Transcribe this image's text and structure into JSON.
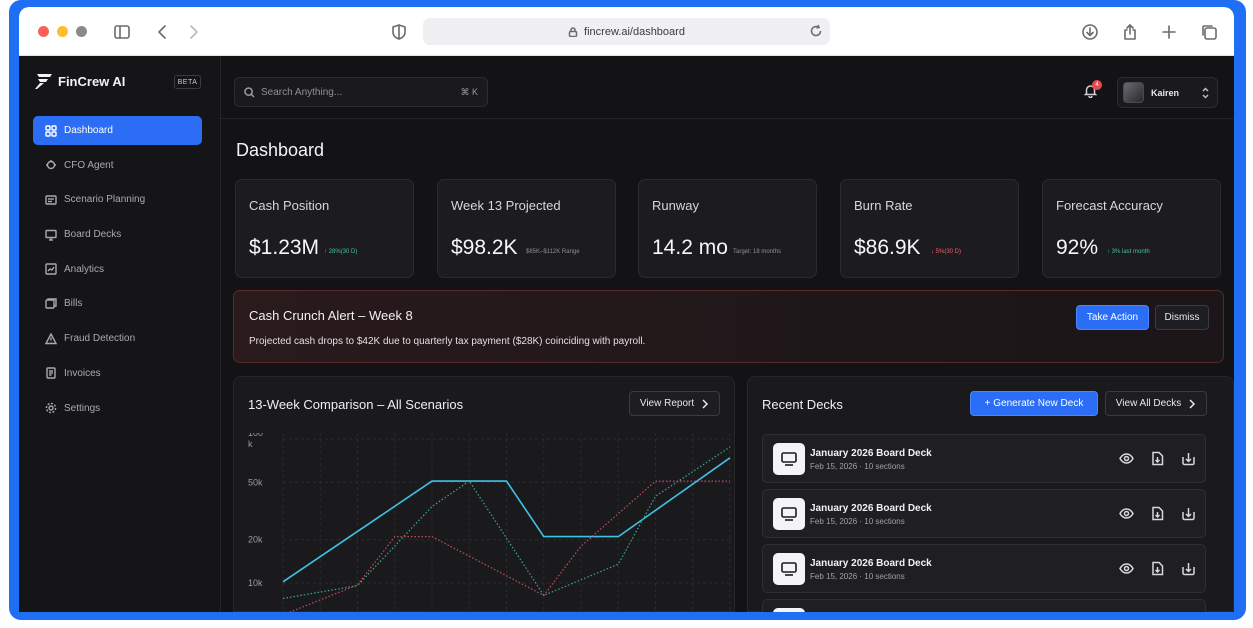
{
  "browser": {
    "url": "fincrew.ai/dashboard"
  },
  "brand": {
    "name": "FinCrew AI",
    "badge": "BETA",
    "accent": "#2b6ef5"
  },
  "sidebar": {
    "items": [
      {
        "label": "Dashboard",
        "icon": "grid-icon",
        "active": true
      },
      {
        "label": "CFO Agent",
        "icon": "agent-icon"
      },
      {
        "label": "Scenario Planning",
        "icon": "planning-icon"
      },
      {
        "label": "Board Decks",
        "icon": "presentation-icon"
      },
      {
        "label": "Analytics",
        "icon": "analytics-icon"
      },
      {
        "label": "Bills",
        "icon": "bills-icon"
      },
      {
        "label": "Fraud Detection",
        "icon": "warning-icon"
      },
      {
        "label": "Invoices",
        "icon": "invoice-icon"
      },
      {
        "label": "Settings",
        "icon": "gear-icon"
      }
    ]
  },
  "topbar": {
    "search_placeholder": "Search Anything...",
    "search_shortcut": "⌘ K",
    "notification_count": "4",
    "user_name": "Kairen"
  },
  "page": {
    "title": "Dashboard"
  },
  "stats": [
    {
      "label": "Cash Position",
      "value": "$1.23M",
      "sub": "↑ 28%(30 D)",
      "tone": "up"
    },
    {
      "label": "Week 13 Projected",
      "value": "$98.2K",
      "sub": "$85K–$112K Range",
      "tone": "muted"
    },
    {
      "label": "Runway",
      "value": "14.2 mo",
      "sub": "Target: 18 months",
      "tone": "muted"
    },
    {
      "label": "Burn Rate",
      "value": "$86.9K",
      "sub": "↓ 5%(30 D)",
      "tone": "down"
    },
    {
      "label": "Forecast Accuracy",
      "value": "92%",
      "sub": "↑ 3% last month",
      "tone": "up"
    }
  ],
  "alert": {
    "title": "Cash Crunch Alert – Week 8",
    "message": "Projected cash drops to $42K due to quarterly tax payment ($28K) coinciding with payroll.",
    "primary_label": "Take Action",
    "secondary_label": "Dismiss"
  },
  "comparison": {
    "title": "13-Week Comparison – All Scenarios",
    "button_label": "View Report"
  },
  "chart_data": {
    "type": "line",
    "title": "13-Week Comparison – All Scenarios",
    "yscale": "log",
    "yticks": [
      "100 k",
      "50k",
      "20k",
      "10k"
    ],
    "ytick_values": [
      100000,
      50000,
      20000,
      10000
    ],
    "x": [
      1,
      2,
      3,
      4,
      5,
      6,
      7,
      8,
      9,
      10,
      11,
      12,
      13
    ],
    "series": [
      {
        "color": "#3fc1e6",
        "style": "solid",
        "values": [
          10200,
          null,
          null,
          null,
          51000,
          null,
          51000,
          21000,
          null,
          21000,
          null,
          null,
          74000
        ]
      },
      {
        "color": "#3aa88a",
        "style": "dotted",
        "values": [
          7800,
          null,
          9600,
          null,
          34000,
          51000,
          null,
          8200,
          null,
          13500,
          40000,
          null,
          88000
        ]
      },
      {
        "color": "#c0505a",
        "style": "dotted",
        "values": [
          6000,
          null,
          9700,
          21000,
          21000,
          null,
          null,
          8200,
          18000,
          null,
          51000,
          null,
          51000
        ]
      }
    ]
  },
  "decks": {
    "title": "Recent Decks",
    "generate_label": "+ Generate New Deck",
    "view_all_label": "View All Decks",
    "items": [
      {
        "name": "January 2026 Board Deck",
        "meta": "Feb 15, 2026 · 10 sections"
      },
      {
        "name": "January 2026 Board Deck",
        "meta": "Feb 15, 2026 · 10 sections"
      },
      {
        "name": "January 2026 Board Deck",
        "meta": "Feb 15, 2026 · 10 sections"
      }
    ]
  }
}
